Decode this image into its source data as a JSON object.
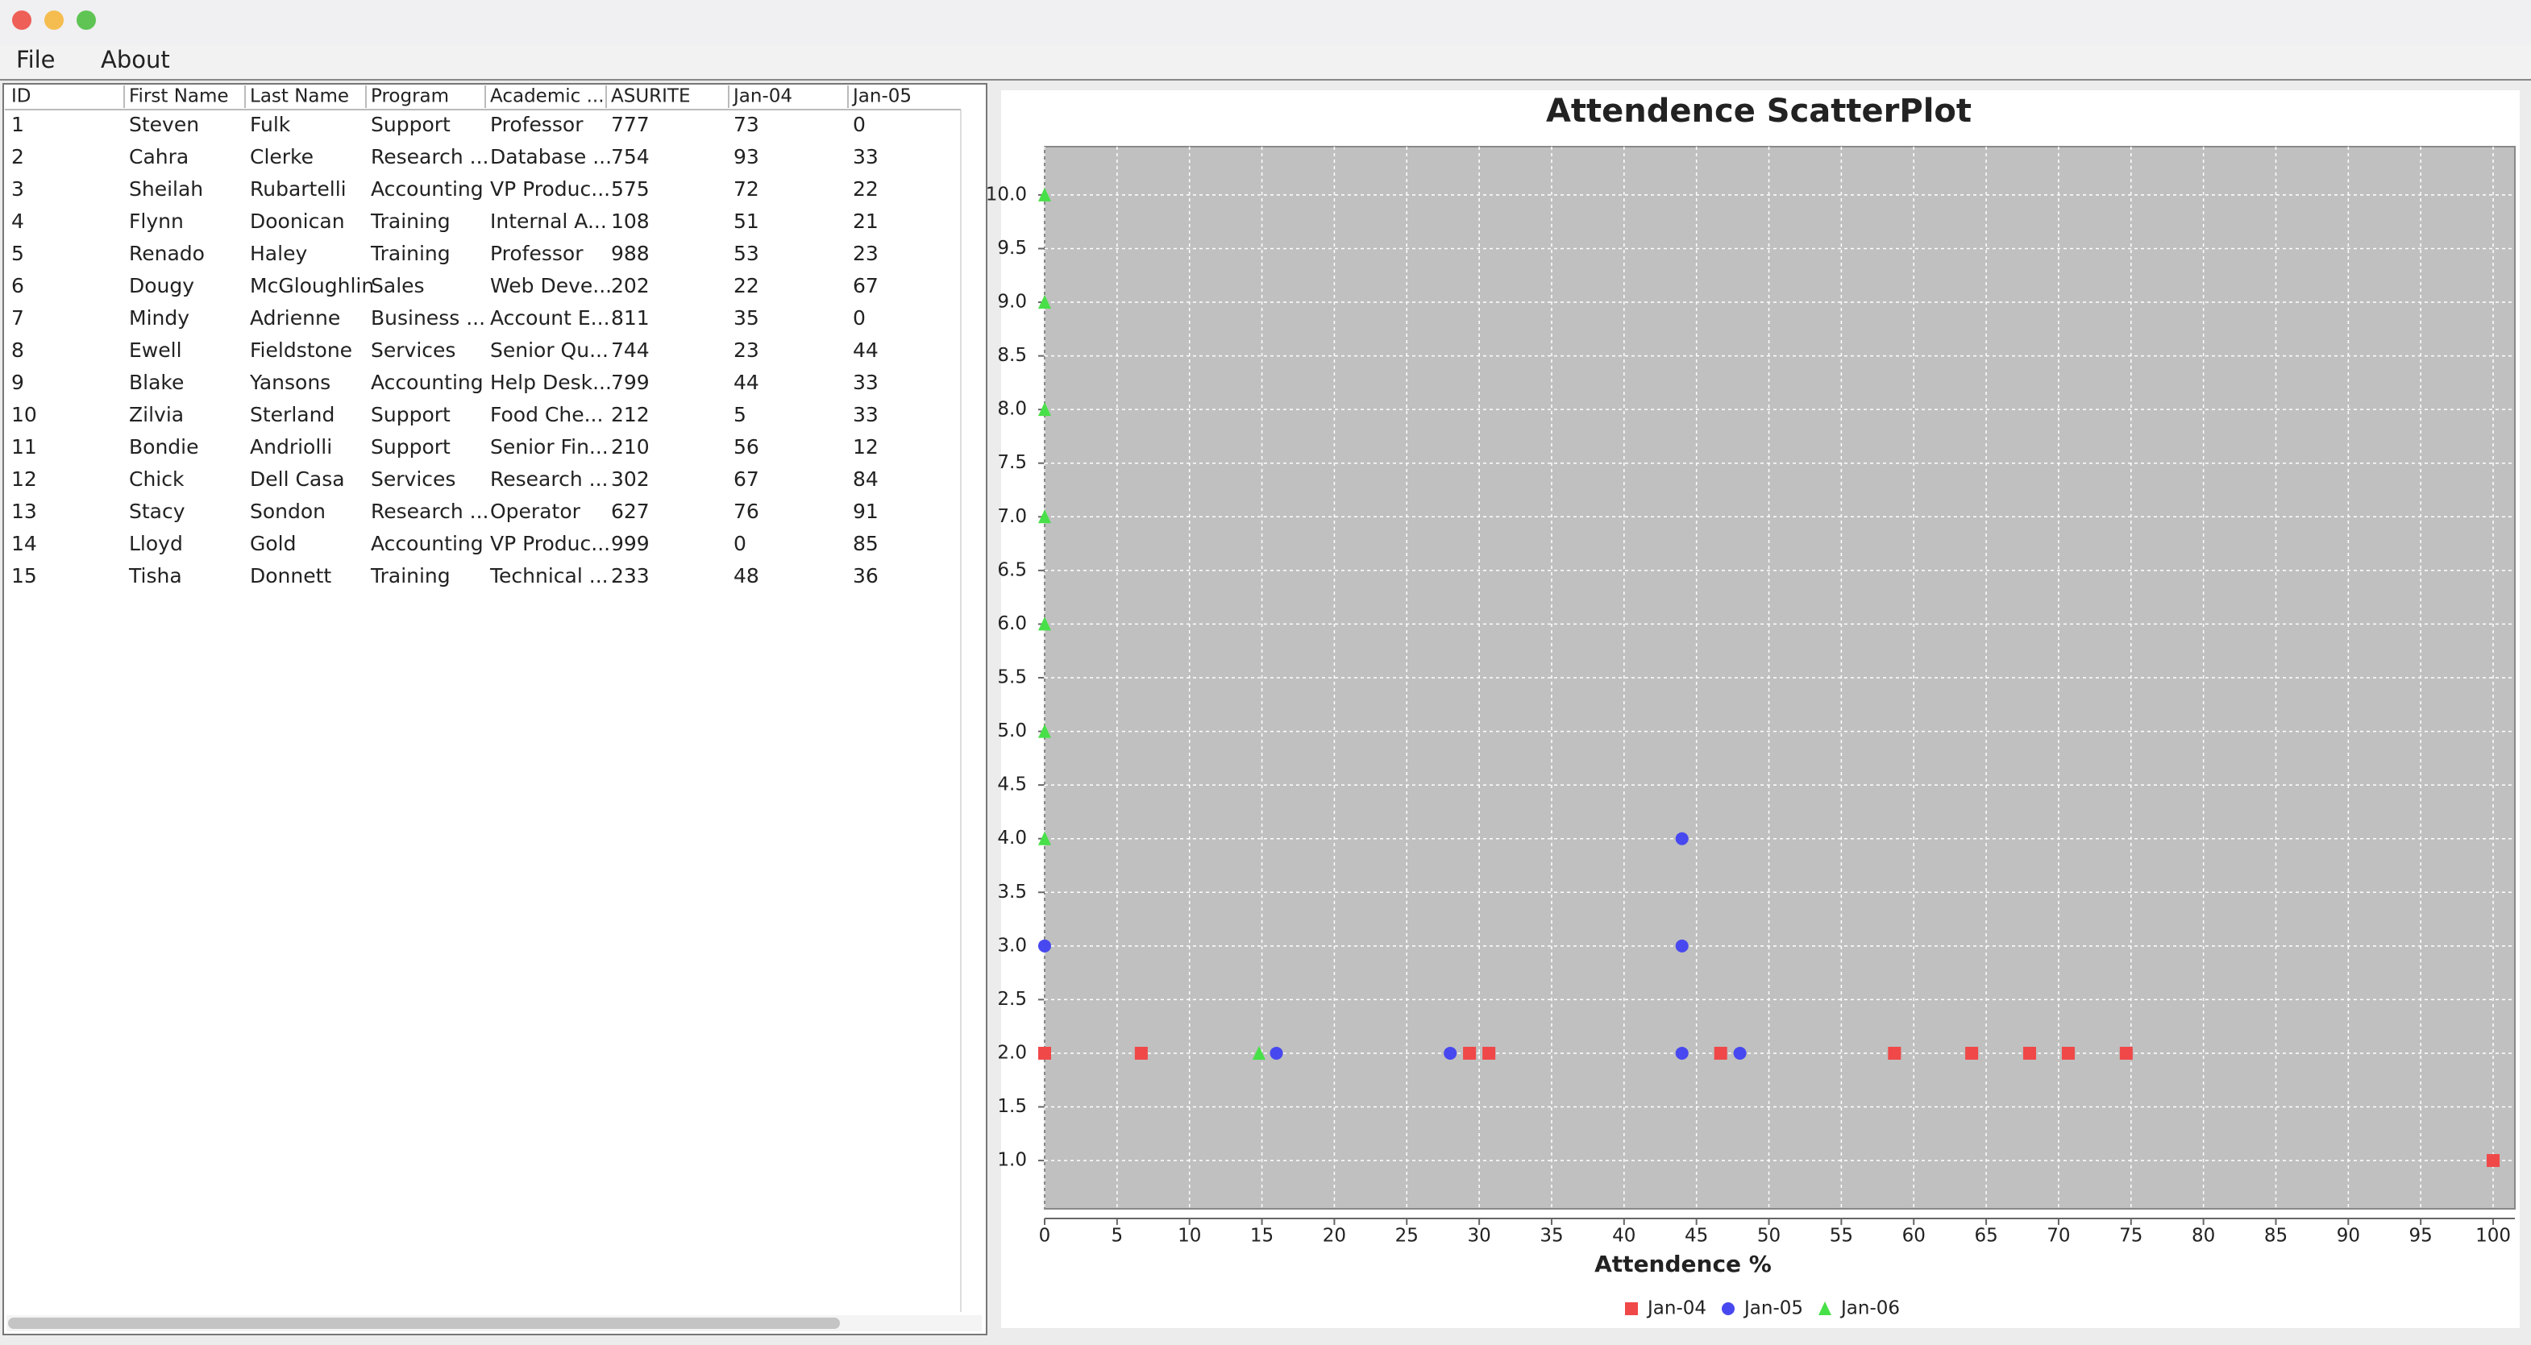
{
  "window": {
    "menu": [
      "File",
      "About"
    ]
  },
  "table": {
    "columns": [
      "ID",
      "First Name",
      "Last Name",
      "Program",
      "Academic ...",
      "ASURITE",
      "Jan-04",
      "Jan-05"
    ],
    "rows": [
      [
        1,
        "Steven",
        "Fulk",
        "Support",
        "Professor",
        777,
        73,
        0
      ],
      [
        2,
        "Cahra",
        "Clerke",
        "Research ...",
        "Database ...",
        754,
        93,
        33
      ],
      [
        3,
        "Sheilah",
        "Rubartelli",
        "Accounting",
        "VP Produc...",
        575,
        72,
        22
      ],
      [
        4,
        "Flynn",
        "Doonican",
        "Training",
        "Internal A...",
        108,
        51,
        21
      ],
      [
        5,
        "Renado",
        "Haley",
        "Training",
        "Professor",
        988,
        53,
        23
      ],
      [
        6,
        "Dougy",
        "McGloughlin",
        "Sales",
        "Web Deve...",
        202,
        22,
        67
      ],
      [
        7,
        "Mindy",
        "Adrienne",
        "Business ...",
        "Account E...",
        811,
        35,
        0
      ],
      [
        8,
        "Ewell",
        "Fieldstone",
        "Services",
        "Senior Qu...",
        744,
        23,
        44
      ],
      [
        9,
        "Blake",
        "Yansons",
        "Accounting",
        "Help Desk...",
        799,
        44,
        33
      ],
      [
        10,
        "Zilvia",
        "Sterland",
        "Support",
        "Food Che...",
        212,
        5,
        33
      ],
      [
        11,
        "Bondie",
        "Andriolli",
        "Support",
        "Senior Fin...",
        210,
        56,
        12
      ],
      [
        12,
        "Chick",
        "Dell Casa",
        "Services",
        "Research ...",
        302,
        67,
        84
      ],
      [
        13,
        "Stacy",
        "Sondon",
        "Research ...",
        "Operator",
        627,
        76,
        91
      ],
      [
        14,
        "Lloyd",
        "Gold",
        "Accounting",
        "VP Produc...",
        999,
        0,
        85
      ],
      [
        15,
        "Tisha",
        "Donnett",
        "Training",
        "Technical ...",
        233,
        48,
        36
      ]
    ]
  },
  "chart_data": {
    "type": "scatter",
    "title": "Attendence ScatterPlot",
    "x_label": "Attendence %",
    "xlim": [
      0,
      101.5
    ],
    "ylim": [
      0.55,
      10.45
    ],
    "xticks": [
      0,
      5,
      10,
      15,
      20,
      25,
      30,
      35,
      40,
      45,
      50,
      55,
      60,
      65,
      70,
      75,
      80,
      85,
      90,
      95,
      100
    ],
    "yticks": [
      {
        "value": 1,
        "label": "1.0"
      },
      {
        "value": 1.5,
        "label": "1.5"
      },
      {
        "value": 2,
        "label": "2.0"
      },
      {
        "value": 2.5,
        "label": "2.5"
      },
      {
        "value": 3,
        "label": "3.0"
      },
      {
        "value": 3.5,
        "label": "3.5"
      },
      {
        "value": 4,
        "label": "4.0"
      },
      {
        "value": 4.5,
        "label": "4.5"
      },
      {
        "value": 5,
        "label": "5.0"
      },
      {
        "value": 5.5,
        "label": "5.5"
      },
      {
        "value": 6,
        "label": "6.0"
      },
      {
        "value": 6.5,
        "label": "6.5"
      },
      {
        "value": 7,
        "label": "7.0"
      },
      {
        "value": 7.5,
        "label": "7.5"
      },
      {
        "value": 8,
        "label": "8.0"
      },
      {
        "value": 8.5,
        "label": "8.5"
      },
      {
        "value": 9,
        "label": "9.0"
      },
      {
        "value": 9.5,
        "label": "9.5"
      },
      {
        "value": 10,
        "label": "10.0"
      }
    ],
    "grid": true,
    "background": "#c0c0c0",
    "legend": "bottom",
    "series": [
      {
        "name": "Jan-04",
        "color": "#f04848",
        "marker": "square",
        "x": [
          0,
          6.67,
          29.33,
          30.67,
          46.67,
          58.67,
          64,
          68,
          70.67,
          74.67,
          100
        ],
        "values": [
          2,
          2,
          2,
          2,
          2,
          2,
          2,
          2,
          2,
          2,
          1
        ]
      },
      {
        "name": "Jan-05",
        "color": "#4848f0",
        "marker": "circle",
        "x": [
          0,
          44,
          44,
          16,
          28,
          44,
          48
        ],
        "values": [
          3,
          4,
          3,
          2,
          2,
          2,
          2
        ]
      },
      {
        "name": "Jan-06",
        "color": "#48e048",
        "marker": "triangle",
        "x": [
          0,
          0,
          0,
          0,
          0,
          0,
          0,
          14.8
        ],
        "values": [
          10,
          9,
          8,
          7,
          6,
          5,
          4,
          2
        ]
      }
    ]
  }
}
